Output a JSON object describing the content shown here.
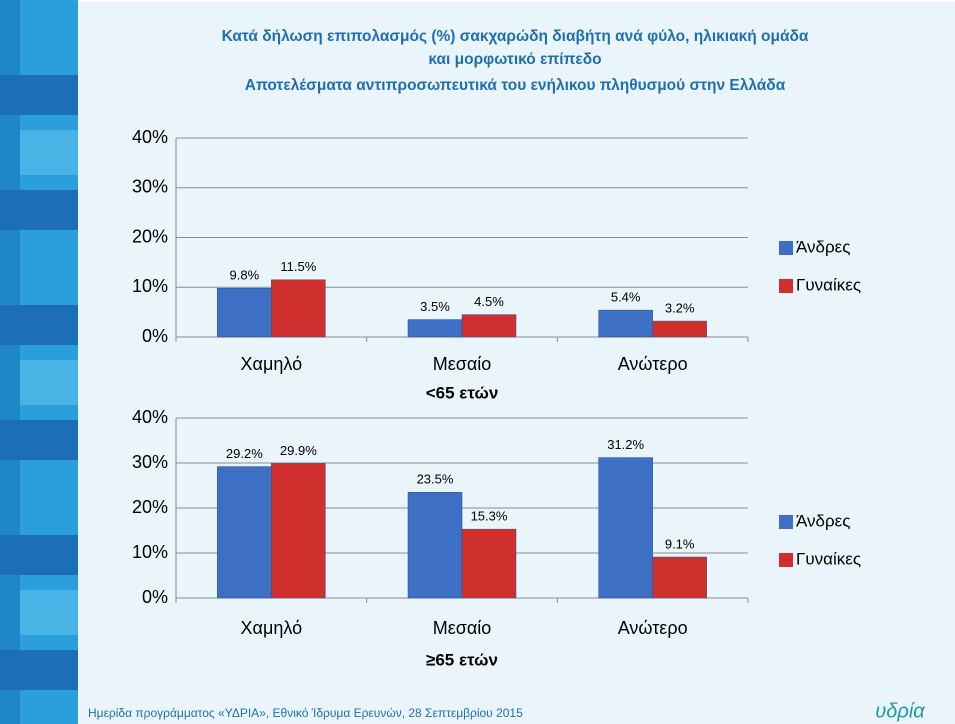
{
  "title": [
    "Κατά δήλωση επιπολασμός (%) σακχαρώδη διαβήτη ανά φύλο, ηλικιακή ομάδα",
    "και μορφωτικό επίπεδο"
  ],
  "subtitle": "Αποτελέσματα αντιπροσωπευτικά του ενήλικου πληθυσμού στην Ελλάδα",
  "footer": "Ημερίδα προγράμματος «ΥΔΡΙΑ», Εθνικό Ίδρυμα Ερευνών, 28 Σεπτεμβρίου 2015",
  "logo": "υδρία",
  "chart_data": [
    {
      "type": "bar",
      "x_label": "<65 ετών",
      "categories": [
        "Χαμηλό",
        "Μεσαίο",
        "Ανώτερο"
      ],
      "series": [
        {
          "name": "Άνδρες",
          "color": "#3d6fc4",
          "values": [
            9.8,
            3.5,
            5.4
          ],
          "value_labels": [
            "9.8%",
            "3.5%",
            "5.4%"
          ]
        },
        {
          "name": "Γυναίκες",
          "color": "#d0302d",
          "values": [
            11.5,
            4.5,
            3.2
          ],
          "value_labels": [
            "11.5%",
            "4.5%",
            "3.2%"
          ]
        }
      ],
      "ylim": [
        0,
        40
      ],
      "yticks": [
        {
          "value": 0,
          "label": "0%"
        },
        {
          "value": 10,
          "label": "10%"
        },
        {
          "value": 20,
          "label": "20%"
        },
        {
          "value": 30,
          "label": "30%"
        },
        {
          "value": 40,
          "label": "40%"
        }
      ],
      "grid": true,
      "legend": "right"
    },
    {
      "type": "bar",
      "x_label": "≥65 ετών",
      "categories": [
        "Χαμηλό",
        "Μεσαίο",
        "Ανώτερο"
      ],
      "series": [
        {
          "name": "Άνδρες",
          "color": "#3d6fc4",
          "values": [
            29.2,
            23.5,
            31.2
          ],
          "value_labels": [
            "29.2%",
            "23.5%",
            "31.2%"
          ]
        },
        {
          "name": "Γυναίκες",
          "color": "#d0302d",
          "values": [
            29.9,
            15.3,
            9.1
          ],
          "value_labels": [
            "29.9%",
            "15.3%",
            "9.1%"
          ]
        }
      ],
      "ylim": [
        0,
        40
      ],
      "yticks": [
        {
          "value": 0,
          "label": "0%"
        },
        {
          "value": 10,
          "label": "10%"
        },
        {
          "value": 20,
          "label": "20%"
        },
        {
          "value": 30,
          "label": "30%"
        },
        {
          "value": 40,
          "label": "40%"
        }
      ],
      "grid": true,
      "legend": "right"
    }
  ]
}
